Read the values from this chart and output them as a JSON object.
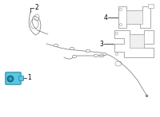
{
  "background_color": "#ffffff",
  "fig_width": 2.0,
  "fig_height": 1.47,
  "dpi": 100,
  "label_1": "1",
  "label_2": "2",
  "label_3": "3",
  "label_4": "4",
  "sensor_color": "#5bc8e0",
  "sensor_dark": "#2a8aaa",
  "line_color": "#888888",
  "bracket_color": "#aaaaaa",
  "label_fontsize": 5.5,
  "leader_lw": 0.5,
  "wire_lw": 0.6
}
